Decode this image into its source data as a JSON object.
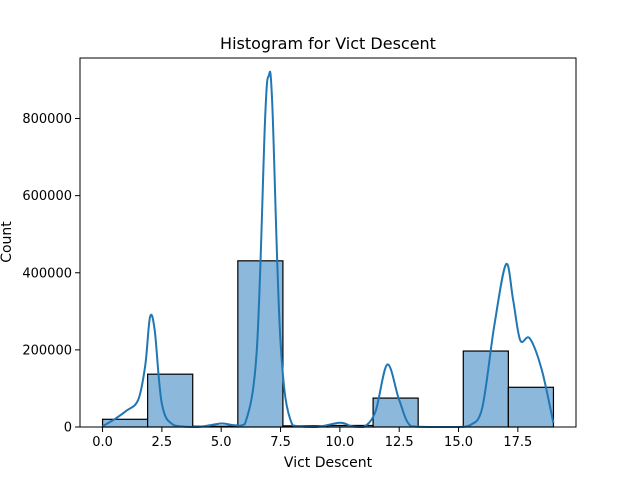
{
  "chart_data": {
    "type": "bar",
    "title": "Histogram for Vict Descent",
    "xlabel": "Vict Descent",
    "ylabel": "Count",
    "xlim": [
      -0.95,
      19.95
    ],
    "ylim": [
      0,
      957000
    ],
    "grid": false,
    "x_ticks": [
      0.0,
      2.5,
      5.0,
      7.5,
      10.0,
      12.5,
      15.0,
      17.5
    ],
    "x_tick_labels": [
      "0.0",
      "2.5",
      "5.0",
      "7.5",
      "10.0",
      "12.5",
      "15.0",
      "17.5"
    ],
    "y_ticks": [
      0,
      200000,
      400000,
      600000,
      800000
    ],
    "y_tick_labels": [
      "0",
      "200000",
      "400000",
      "600000",
      "800000"
    ],
    "bins": [
      {
        "x0": 0.0,
        "x1": 1.9,
        "value": 20000
      },
      {
        "x0": 1.9,
        "x1": 3.8,
        "value": 137000
      },
      {
        "x0": 3.8,
        "x1": 5.7,
        "value": 2000
      },
      {
        "x0": 5.7,
        "x1": 7.6,
        "value": 431000
      },
      {
        "x0": 7.6,
        "x1": 9.5,
        "value": 3000
      },
      {
        "x0": 9.5,
        "x1": 11.4,
        "value": 4000
      },
      {
        "x0": 11.4,
        "x1": 13.3,
        "value": 75000
      },
      {
        "x0": 13.3,
        "x1": 15.2,
        "value": 1000
      },
      {
        "x0": 15.2,
        "x1": 17.1,
        "value": 197000
      },
      {
        "x0": 17.1,
        "x1": 19.0,
        "value": 103000
      }
    ],
    "kde": [
      [
        0.0,
        2000
      ],
      [
        0.5,
        20000
      ],
      [
        1.0,
        42000
      ],
      [
        1.5,
        70000
      ],
      [
        1.8,
        160000
      ],
      [
        2.0,
        285000
      ],
      [
        2.2,
        250000
      ],
      [
        2.5,
        60000
      ],
      [
        3.0,
        5000
      ],
      [
        4.0,
        0
      ],
      [
        5.0,
        9000
      ],
      [
        5.5,
        5000
      ],
      [
        6.0,
        8000
      ],
      [
        6.5,
        200000
      ],
      [
        6.85,
        800000
      ],
      [
        7.0,
        910000
      ],
      [
        7.15,
        840000
      ],
      [
        7.5,
        220000
      ],
      [
        8.0,
        5000
      ],
      [
        9.0,
        0
      ],
      [
        10.0,
        11000
      ],
      [
        10.5,
        2000
      ],
      [
        11.0,
        0
      ],
      [
        11.5,
        40000
      ],
      [
        12.0,
        162000
      ],
      [
        12.5,
        70000
      ],
      [
        13.0,
        2000
      ],
      [
        14.0,
        0
      ],
      [
        15.0,
        0
      ],
      [
        15.5,
        5000
      ],
      [
        16.0,
        50000
      ],
      [
        16.5,
        260000
      ],
      [
        17.0,
        422000
      ],
      [
        17.3,
        330000
      ],
      [
        17.6,
        225000
      ],
      [
        18.0,
        230000
      ],
      [
        18.5,
        150000
      ],
      [
        19.0,
        10000
      ]
    ],
    "bar_color": "#8cb8dc",
    "bar_edge_color": "#000000",
    "line_color": "#1f77b4"
  }
}
